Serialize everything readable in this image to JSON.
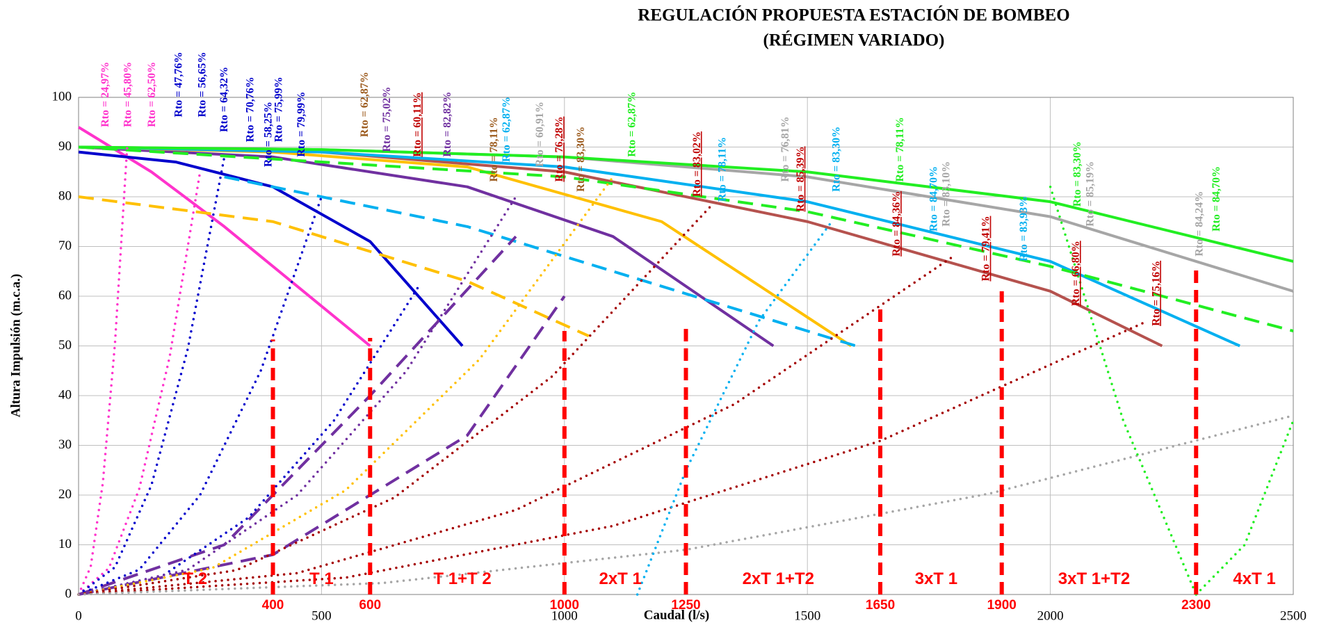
{
  "chart_data": {
    "type": "line",
    "title": "REGULACIÓN PROPUESTA ESTACIÓN DE BOMBEO",
    "subtitle": "(RÉGIMEN VARIADO)",
    "xlabel": "Caudal (l/s)",
    "ylabel": "Altura Impulsión (m.c.a.)",
    "xlim": [
      0,
      2500
    ],
    "ylim": [
      0,
      100
    ],
    "xticks": [
      0,
      500,
      1000,
      1500,
      2000,
      2500
    ],
    "yticks": [
      0,
      10,
      20,
      30,
      40,
      50,
      60,
      70,
      80,
      90,
      100
    ],
    "grid": true,
    "series": [
      {
        "color": "#ff33cc",
        "style": "solid",
        "x": [
          0,
          150,
          300,
          450,
          600
        ],
        "values": [
          94,
          85,
          74,
          62,
          50
        ]
      },
      {
        "color": "#0000cc",
        "style": "solid",
        "x": [
          0,
          200,
          400,
          600,
          790
        ],
        "values": [
          89,
          87,
          82,
          71,
          50
        ]
      },
      {
        "color": "#7030a0",
        "style": "solid",
        "x": [
          0,
          400,
          800,
          1100,
          1430
        ],
        "values": [
          90,
          88,
          82,
          72,
          50
        ]
      },
      {
        "color": "#ffc000",
        "style": "solid",
        "x": [
          0,
          400,
          800,
          1200,
          1590
        ],
        "values": [
          90,
          89,
          86,
          75,
          50
        ]
      },
      {
        "color": "#b5524e",
        "style": "solid",
        "x": [
          0,
          500,
          1000,
          1500,
          2000,
          2230
        ],
        "values": [
          90,
          89,
          85,
          75,
          61,
          50
        ]
      },
      {
        "color": "#00b0f0",
        "style": "solid",
        "x": [
          0,
          500,
          1000,
          1500,
          2000,
          2390
        ],
        "values": [
          90,
          89,
          86,
          79,
          67,
          50
        ]
      },
      {
        "color": "#a6a6a6",
        "style": "solid",
        "x": [
          0,
          500,
          1000,
          1500,
          2000,
          2500
        ],
        "values": [
          90,
          89.5,
          88,
          84,
          76,
          61
        ]
      },
      {
        "color": "#22ee22",
        "style": "solid",
        "x": [
          0,
          500,
          1000,
          1500,
          2000,
          2500
        ],
        "values": [
          90,
          89.5,
          88,
          85,
          79,
          67
        ]
      },
      {
        "color": "#22ee22",
        "style": "dashed",
        "x": [
          0,
          1000,
          1500,
          2000,
          2500
        ],
        "values": [
          90,
          84,
          77,
          66,
          53
        ]
      },
      {
        "color": "#00b0f0",
        "style": "dashed",
        "x": [
          300,
          800,
          1200,
          1600
        ],
        "values": [
          84,
          74,
          62,
          50
        ]
      },
      {
        "color": "#ffc000",
        "style": "dashed",
        "x": [
          0,
          400,
          800,
          1050
        ],
        "values": [
          80,
          75,
          63,
          52
        ]
      },
      {
        "color": "#7030a0",
        "style": "dashed",
        "x": [
          0,
          300,
          600,
          900
        ],
        "values": [
          0,
          10,
          40,
          72
        ]
      },
      {
        "color": "#7030a0",
        "style": "dashed",
        "x": [
          0,
          400,
          800,
          1000
        ],
        "values": [
          0,
          8,
          32,
          60
        ]
      },
      {
        "color": "#ff33cc",
        "style": "dotted",
        "x": [
          0,
          25,
          50,
          75,
          100
        ],
        "values": [
          0,
          5.6,
          22.5,
          50.6,
          90
        ]
      },
      {
        "color": "#ff33cc",
        "style": "dotted",
        "x": [
          0,
          62.5,
          125,
          187.5,
          250
        ],
        "values": [
          0,
          5.3,
          21.3,
          47.8,
          85
        ]
      },
      {
        "color": "#0000cc",
        "style": "dotted",
        "x": [
          0,
          75,
          150,
          225,
          300
        ],
        "values": [
          0,
          5.5,
          22,
          49.5,
          88
        ]
      },
      {
        "color": "#0000cc",
        "style": "dotted",
        "x": [
          0,
          125,
          250,
          375,
          500
        ],
        "values": [
          0,
          5,
          20,
          45,
          80
        ]
      },
      {
        "color": "#0000cc",
        "style": "dotted",
        "x": [
          0,
          175,
          350,
          525,
          700
        ],
        "values": [
          0,
          3.9,
          15.5,
          34.9,
          62
        ]
      },
      {
        "color": "#7030a0",
        "style": "dotted",
        "x": [
          0,
          225,
          450,
          675,
          900
        ],
        "values": [
          0,
          5,
          20,
          45,
          80
        ]
      },
      {
        "color": "#ffc000",
        "style": "dotted",
        "x": [
          0,
          275,
          550,
          825,
          1100
        ],
        "values": [
          0,
          5.3,
          21,
          47.3,
          84
        ]
      },
      {
        "color": "#a50000",
        "style": "dotted",
        "x": [
          0,
          325,
          650,
          975,
          1300
        ],
        "values": [
          0,
          4.9,
          19.5,
          43.9,
          78
        ]
      },
      {
        "color": "#a50000",
        "style": "dotted",
        "x": [
          0,
          450,
          900,
          1350,
          1800
        ],
        "values": [
          0,
          4.3,
          17,
          38.3,
          68
        ]
      },
      {
        "color": "#a50000",
        "style": "dotted",
        "x": [
          0,
          550,
          1100,
          1650,
          2200
        ],
        "values": [
          0,
          3.4,
          13.8,
          30.9,
          55
        ]
      },
      {
        "color": "#a6a6a6",
        "style": "dotted",
        "x": [
          0,
          625,
          1250,
          1875,
          2500
        ],
        "values": [
          0,
          2.3,
          9,
          20.3,
          36
        ]
      },
      {
        "color": "#00b0f0",
        "style": "dotted",
        "x": [
          1150,
          1250,
          1400,
          1550
        ],
        "values": [
          0,
          25,
          55,
          75
        ]
      },
      {
        "color": "#22ee22",
        "style": "dotted",
        "x": [
          2000,
          2150,
          2300
        ],
        "values": [
          82,
          35,
          0
        ]
      },
      {
        "color": "#22ee22",
        "style": "dotted",
        "x": [
          2300,
          2400,
          2500
        ],
        "values": [
          0,
          10,
          35
        ]
      }
    ],
    "switch_lines": {
      "color": "#ff0000",
      "x": [
        400,
        600,
        1000,
        1250,
        1650,
        1900,
        2300
      ],
      "values": [
        51.3,
        51.6,
        53,
        54.5,
        58,
        61,
        65.5
      ]
    },
    "zones": [
      "T 2",
      "T 1",
      "T 1+T 2",
      "2xT 1",
      "2xT 1+T2",
      "3xT 1",
      "3xT 1+T2",
      "4xT 1"
    ],
    "annotations": [
      {
        "text": "Rto = 24,97%",
        "color": "#ff33cc"
      },
      {
        "text": "Rto = 45,80%",
        "color": "#ff33cc"
      },
      {
        "text": "Rto = 62,50%",
        "color": "#ff33cc"
      },
      {
        "text": "Rto = 47,76%",
        "color": "#0000cc"
      },
      {
        "text": "Rto = 56,65%",
        "color": "#0000cc"
      },
      {
        "text": "Rto = 64,32%",
        "color": "#0000cc"
      },
      {
        "text": "Rto = 70,76%",
        "color": "#0000cc"
      },
      {
        "text": "Rto = 58,25%",
        "color": "#0000cc"
      },
      {
        "text": "Rto = 75,99%",
        "color": "#0000cc"
      },
      {
        "text": "Rto = 79,99%",
        "color": "#0000cc"
      },
      {
        "text": "Rto = 62,87%",
        "color": "#9c5b1e"
      },
      {
        "text": "Rto = 75,02%",
        "color": "#7030a0"
      },
      {
        "text": "Rto = 60,11%",
        "color": "#c00000",
        "underline": true
      },
      {
        "text": "Rto = 82,82%",
        "color": "#7030a0"
      },
      {
        "text": "Rto = 78,11%",
        "color": "#9c5b1e"
      },
      {
        "text": "Rto = 62,87%",
        "color": "#00b0f0"
      },
      {
        "text": "Rto = 60,91%",
        "color": "#a6a6a6"
      },
      {
        "text": "Rto = 76,28%",
        "color": "#c00000",
        "underline": true
      },
      {
        "text": "Rto = 83,30%",
        "color": "#9c5b1e"
      },
      {
        "text": "Rto = 62,87%",
        "color": "#22ee22"
      },
      {
        "text": "Rto = 83,02%",
        "color": "#c00000",
        "underline": true
      },
      {
        "text": "Rto = 78,11%",
        "color": "#00b0f0"
      },
      {
        "text": "Rto = 76,81%",
        "color": "#a6a6a6"
      },
      {
        "text": "Rto = 85,39%",
        "color": "#c00000",
        "underline": true
      },
      {
        "text": "Rto = 83,30%",
        "color": "#00b0f0"
      },
      {
        "text": "Rto = 78,11%",
        "color": "#22ee22"
      },
      {
        "text": "Rto = 84,70%",
        "color": "#00b0f0"
      },
      {
        "text": "Rto = 83,10%",
        "color": "#a6a6a6"
      },
      {
        "text": "Rto = 84,36%",
        "color": "#c00000",
        "underline": true
      },
      {
        "text": "Rto = 79,41%",
        "color": "#c00000",
        "underline": true
      },
      {
        "text": "Rto = 83,93%",
        "color": "#00b0f0"
      },
      {
        "text": "Rto = 83,30%",
        "color": "#22ee22"
      },
      {
        "text": "Rto = 85,19%",
        "color": "#a6a6a6"
      },
      {
        "text": "Rto = 66,80%",
        "color": "#c00000",
        "underline": true
      },
      {
        "text": "Rto = 75,16%",
        "color": "#c00000",
        "underline": true
      },
      {
        "text": "Rto = 84,24%",
        "color": "#a6a6a6"
      },
      {
        "text": "Rto = 84,70%",
        "color": "#22ee22"
      }
    ]
  }
}
